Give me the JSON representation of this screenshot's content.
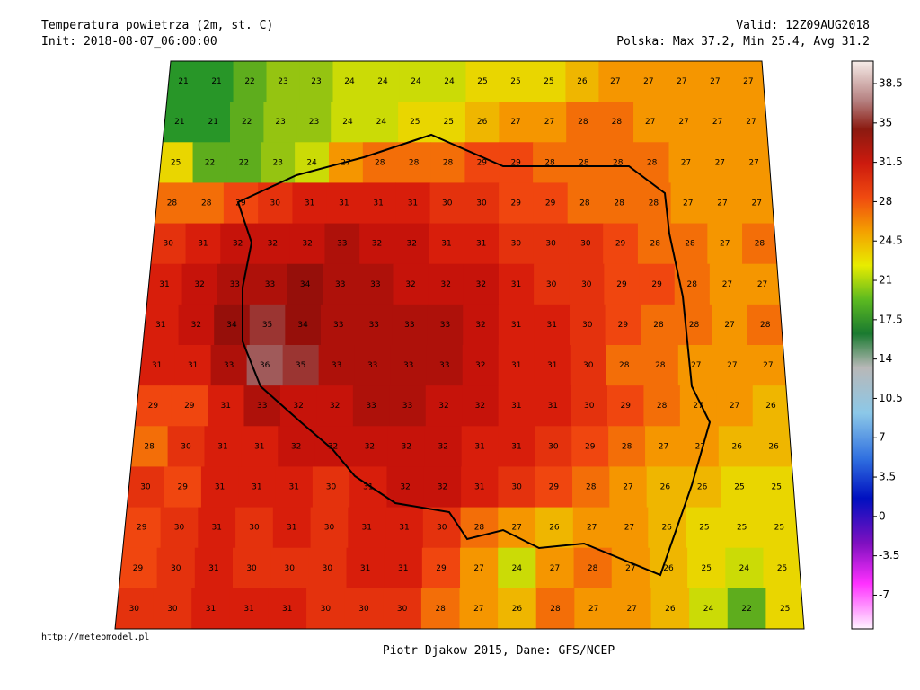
{
  "header": {
    "title": "Temperatura powietrza (2m, st. C)",
    "init": "Init: 2018-08-07_06:00:00",
    "valid": "Valid: 12Z09AUG2018",
    "stats": "Polska: Max 37.2, Min 25.4, Avg 31.2"
  },
  "footer": {
    "url": "http://meteomodel.pl",
    "credit": "Piotr Djakow 2015, Dane: GFS/NCEP"
  },
  "colorbar": {
    "lim": [
      -10,
      40.5
    ],
    "ticks": [
      38.5,
      35,
      31.5,
      28,
      24.5,
      21,
      17.5,
      14,
      10.5,
      7,
      3.5,
      0,
      -3.5,
      -7
    ]
  },
  "grid": [
    [
      21,
      21,
      22,
      23,
      23,
      24,
      24,
      24,
      24,
      25,
      25,
      25,
      26,
      27,
      27,
      27,
      27,
      27
    ],
    [
      21,
      21,
      22,
      23,
      23,
      24,
      24,
      25,
      25,
      26,
      27,
      27,
      28,
      28,
      27,
      27,
      27,
      27
    ],
    [
      25,
      22,
      22,
      23,
      24,
      27,
      28,
      28,
      28,
      29,
      29,
      28,
      28,
      28,
      28,
      27,
      27,
      27
    ],
    [
      28,
      28,
      29,
      30,
      31,
      31,
      31,
      31,
      30,
      30,
      29,
      29,
      28,
      28,
      28,
      27,
      27,
      27
    ],
    [
      30,
      31,
      32,
      32,
      32,
      33,
      32,
      32,
      31,
      31,
      30,
      30,
      30,
      29,
      28,
      28,
      27,
      28
    ],
    [
      31,
      32,
      33,
      33,
      34,
      33,
      33,
      32,
      32,
      32,
      31,
      30,
      30,
      29,
      29,
      28,
      27,
      27
    ],
    [
      31,
      32,
      34,
      35,
      34,
      33,
      33,
      33,
      33,
      32,
      31,
      31,
      30,
      29,
      28,
      28,
      27,
      28
    ],
    [
      31,
      31,
      33,
      36,
      35,
      33,
      33,
      33,
      33,
      32,
      31,
      31,
      30,
      28,
      28,
      27,
      27,
      27
    ],
    [
      29,
      29,
      31,
      33,
      32,
      32,
      33,
      33,
      32,
      32,
      31,
      31,
      30,
      29,
      28,
      27,
      27,
      26
    ],
    [
      28,
      30,
      31,
      31,
      32,
      32,
      32,
      32,
      32,
      31,
      31,
      30,
      29,
      28,
      27,
      27,
      26,
      26
    ],
    [
      30,
      29,
      31,
      31,
      31,
      30,
      31,
      32,
      32,
      31,
      30,
      29,
      28,
      27,
      26,
      26,
      25,
      25
    ],
    [
      29,
      30,
      31,
      30,
      31,
      30,
      31,
      31,
      30,
      28,
      27,
      26,
      27,
      27,
      26,
      25,
      25,
      25
    ],
    [
      29,
      30,
      31,
      30,
      30,
      30,
      31,
      31,
      29,
      27,
      24,
      27,
      28,
      27,
      26,
      25,
      24,
      25
    ],
    [
      30,
      30,
      31,
      31,
      31,
      30,
      30,
      30,
      28,
      27,
      26,
      28,
      27,
      27,
      26,
      24,
      22,
      25
    ]
  ]
}
